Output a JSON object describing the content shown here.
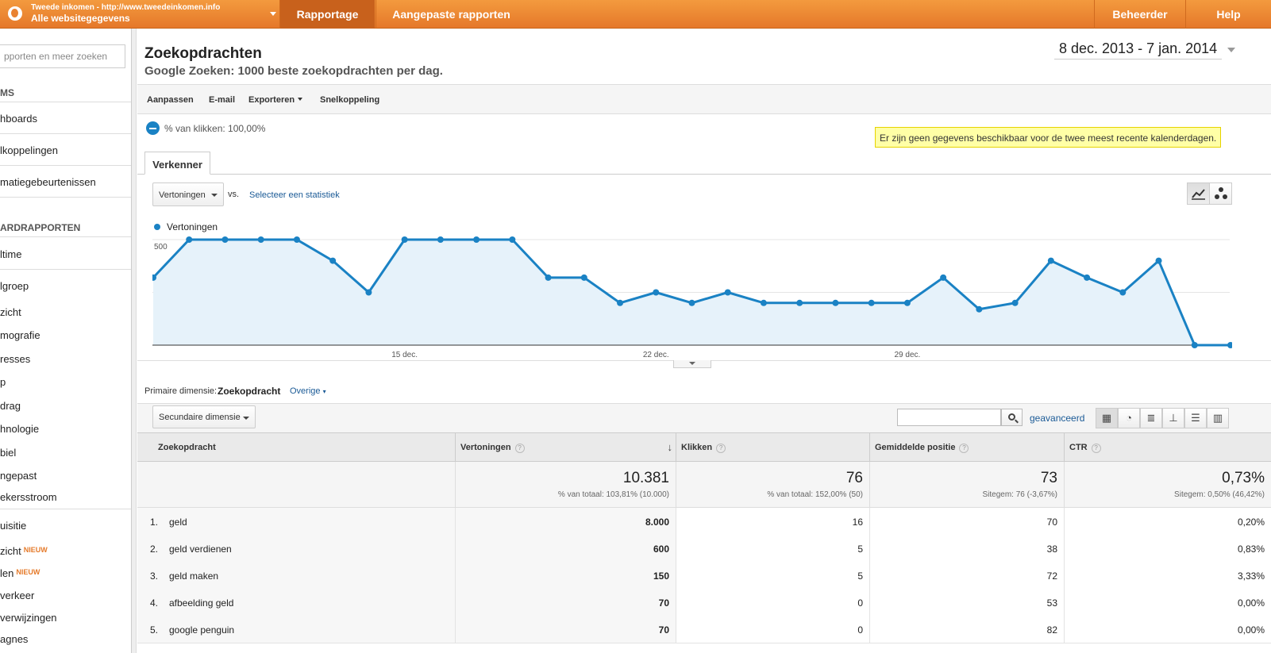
{
  "topbar": {
    "account_line1": "Tweede inkomen - http://www.tweedeinkomen.info",
    "account_line2": "Alle websitegegevens",
    "tabs": [
      "Rapportage",
      "Aangepaste rapporten"
    ],
    "right": [
      "Beheerder",
      "Help"
    ],
    "colors": {
      "bar": "#e98231",
      "active_tab": "#c8611c"
    }
  },
  "sidebar": {
    "search_placeholder": "pporten en meer zoeken",
    "section1": "MS",
    "items1": [
      "hboards",
      "lkoppelingen",
      "matiegebeurtenissen"
    ],
    "section2": "ARDRAPPORTEN",
    "items2": [
      "ltime"
    ],
    "items3": [
      "lgroep",
      "zicht",
      "mografie",
      "resses",
      "p",
      "drag",
      "hnologie",
      "biel",
      "ngepast",
      "ekersstroom"
    ],
    "items4": [
      {
        "label": "uisitie",
        "badge": ""
      },
      {
        "label": "zicht",
        "badge": "NIEUW"
      },
      {
        "label": "len",
        "badge": "NIEUW"
      },
      {
        "label": "verkeer",
        "badge": ""
      },
      {
        "label": "verwijzingen",
        "badge": ""
      },
      {
        "label": "agnes",
        "badge": ""
      }
    ]
  },
  "header": {
    "title": "Zoekopdrachten",
    "subtitle": "Google Zoeken: 1000 beste zoekopdrachten per dag.",
    "date_range": "8 dec. 2013 - 7 jan. 2014"
  },
  "toolbar": {
    "customize": "Aanpassen",
    "email": "E-mail",
    "export": "Exporteren",
    "shortcut": "Snelkoppeling"
  },
  "segment": {
    "label": "% van klikken: 100,00%"
  },
  "notice": "Er zijn geen gegevens beschikbaar voor de twee meest recente kalenderdagen.",
  "explorer": {
    "tab": "Verkenner",
    "metric": "Vertoningen",
    "vs": "vs.",
    "select_stat": "Selecteer een statistiek"
  },
  "chart_data": {
    "type": "area",
    "series": [
      {
        "name": "Vertoningen",
        "color": "#1a82c4",
        "values": [
          320,
          500,
          500,
          500,
          500,
          400,
          250,
          500,
          500,
          500,
          500,
          320,
          320,
          200,
          250,
          200,
          250,
          200,
          200,
          200,
          200,
          200,
          320,
          170,
          200,
          400,
          320,
          250,
          400,
          0,
          0
        ]
      }
    ],
    "x_tick_labels": [
      "15 dec.",
      "22 dec.",
      "29 dec."
    ],
    "x_tick_index": [
      7,
      14,
      21
    ],
    "y_tick_labels": [
      "500",
      "250"
    ],
    "y_ticks": [
      500,
      250
    ],
    "ylim": [
      0,
      500
    ],
    "grid": true,
    "legend": "top-left"
  },
  "dimension": {
    "label": "Primaire dimensie:",
    "value": "Zoekopdracht",
    "other": "Overige",
    "secondary": "Secundaire dimensie",
    "advanced": "geavanceerd"
  },
  "table": {
    "headers": [
      "Zoekopdracht",
      "Vertoningen",
      "Klikken",
      "Gemiddelde positie",
      "CTR"
    ],
    "totals": [
      {
        "value": "10.381",
        "sub": "% van totaal: 103,81% (10.000)"
      },
      {
        "value": "76",
        "sub": "% van totaal: 152,00% (50)"
      },
      {
        "value": "73",
        "sub": "Sitegem: 76 (-3,67%)"
      },
      {
        "value": "0,73%",
        "sub": "Sitegem: 0,50% (46,42%)"
      }
    ],
    "rows": [
      {
        "n": "1.",
        "q": "geld",
        "imp": "8.000",
        "clicks": "16",
        "pos": "70",
        "ctr": "0,20%"
      },
      {
        "n": "2.",
        "q": "geld verdienen",
        "imp": "600",
        "clicks": "5",
        "pos": "38",
        "ctr": "0,83%"
      },
      {
        "n": "3.",
        "q": "geld maken",
        "imp": "150",
        "clicks": "5",
        "pos": "72",
        "ctr": "3,33%"
      },
      {
        "n": "4.",
        "q": "afbeelding geld",
        "imp": "70",
        "clicks": "0",
        "pos": "53",
        "ctr": "0,00%"
      },
      {
        "n": "5.",
        "q": "google penguin",
        "imp": "70",
        "clicks": "0",
        "pos": "82",
        "ctr": "0,00%"
      }
    ]
  }
}
